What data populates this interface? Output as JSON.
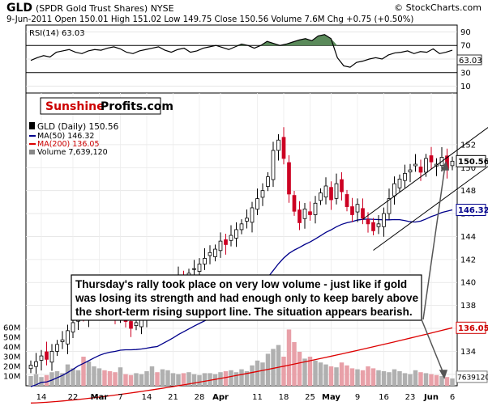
{
  "header": {
    "symbol": "GLD",
    "name": "(SPDR Gold Trust Shares) NYSE",
    "copyright": "© StockCharts.com",
    "quote": "9-Jun-2011   Open 150.01   High 151.02   Low 149.75   Close 150.56   Volume 7.6M   Chg +0.75 (+0.50%)"
  },
  "watermark": {
    "part1": "Sunshine",
    "part2": "Profits.com",
    "color1": "#cc0000"
  },
  "annotation": {
    "lines": [
      "Thursday's rally took place on very low volume - just like if gold",
      "was losing its strength and had enough only to keep barely above",
      "the short-term rising support line. The situation appears bearish."
    ]
  },
  "chart_data": {
    "type": "candlestick",
    "rsi": {
      "legend": "RSI(14) 63.03",
      "last_label": "63.03",
      "ticks": [
        "90",
        "70",
        "50",
        "30",
        "10"
      ],
      "ylim": [
        0,
        100
      ],
      "values": [
        48,
        52,
        55,
        53,
        60,
        62,
        64,
        60,
        58,
        62,
        64,
        63,
        66,
        68,
        65,
        60,
        58,
        62,
        64,
        66,
        68,
        63,
        60,
        64,
        66,
        60,
        62,
        66,
        68,
        70,
        67,
        64,
        68,
        72,
        70,
        66,
        70,
        76,
        73,
        70,
        72,
        75,
        78,
        80,
        77,
        84,
        86,
        80,
        52,
        40,
        38,
        45,
        47,
        50,
        52,
        50,
        56,
        59,
        60,
        62,
        58,
        61,
        60,
        65,
        58,
        60,
        63
      ],
      "color_fill_overbought": "#5a8a5a"
    },
    "price": {
      "legend": {
        "gld": "GLD (Daily) 150.56",
        "ma50": "MA(50) 146.32",
        "ma200": "MA(200) 136.05",
        "volume": "Volume 7,639,120"
      },
      "price_ticks": [
        "152",
        "150",
        "148",
        "146",
        "144",
        "142",
        "140",
        "138",
        "136",
        "134",
        "132"
      ],
      "volume_ticks": [
        "60M",
        "50M",
        "40M",
        "30M",
        "20M",
        "10M"
      ],
      "value_labels": {
        "close": "150.56",
        "ma50": "146.32",
        "ma200": "136.05",
        "volume": "7639120"
      },
      "x_labels": [
        "14",
        "22",
        "Mar",
        "7",
        "14",
        "21",
        "28",
        "Apr",
        "11",
        "18",
        "25",
        "May",
        "9",
        "16",
        "23",
        "Jun",
        "6"
      ],
      "x_label_index": [
        2,
        8,
        13,
        17,
        22,
        27,
        32,
        36,
        43,
        48,
        53,
        57,
        62,
        67,
        72,
        76,
        80
      ],
      "closes": [
        132.8,
        133.1,
        133.6,
        133.3,
        134.0,
        134.6,
        135.0,
        135.8,
        136.5,
        137.3,
        137.0,
        137.6,
        138.2,
        138.4,
        138.0,
        137.4,
        137.0,
        137.8,
        136.6,
        136.0,
        136.5,
        137.1,
        137.6,
        138.2,
        137.7,
        139.0,
        139.4,
        139.9,
        140.5,
        140.2,
        140.8,
        141.2,
        141.6,
        142.1,
        142.6,
        142.9,
        143.6,
        143.3,
        144.1,
        144.6,
        145.1,
        145.6,
        146.5,
        147.3,
        148.0,
        149.2,
        151.5,
        152.4,
        150.8,
        147.7,
        146.2,
        145.2,
        146.4,
        145.9,
        146.9,
        147.8,
        148.4,
        147.2,
        148.6,
        147.9,
        146.6,
        145.9,
        146.8,
        145.6,
        145.1,
        144.5,
        145.1,
        146.0,
        147.3,
        148.6,
        149.0,
        149.5,
        149.8,
        150.3,
        149.6,
        150.8,
        150.5,
        150.3,
        150.9,
        149.81,
        150.56
      ],
      "ma50_end": 146.32,
      "ma200_end": 136.05,
      "volumes_m": [
        10,
        12,
        9,
        11,
        14,
        15,
        13,
        22,
        18,
        16,
        30,
        25,
        20,
        18,
        16,
        15,
        14,
        19,
        12,
        11,
        13,
        12,
        15,
        20,
        14,
        17,
        16,
        13,
        12,
        13,
        14,
        12,
        11,
        13,
        13,
        12,
        14,
        15,
        16,
        14,
        17,
        15,
        21,
        26,
        24,
        33,
        38,
        42,
        30,
        58,
        45,
        35,
        28,
        30,
        26,
        24,
        22,
        20,
        19,
        24,
        21,
        18,
        17,
        16,
        20,
        18,
        16,
        15,
        14,
        17,
        15,
        13,
        12,
        16,
        14,
        13,
        12,
        11,
        10,
        9,
        7.6
      ],
      "channel_upper": {
        "from": [
          63,
          145.5
        ],
        "to": [
          90,
          155.0
        ]
      },
      "channel_lower": {
        "from": [
          65,
          142.8
        ],
        "to": [
          90,
          151.6
        ]
      },
      "colors": {
        "up": "#ffffff",
        "down": "#cc0022",
        "ma50": "#00008b",
        "ma200": "#dd0000",
        "vol_up": "#b0b0b0",
        "vol_down": "#e8a0a8"
      }
    }
  }
}
